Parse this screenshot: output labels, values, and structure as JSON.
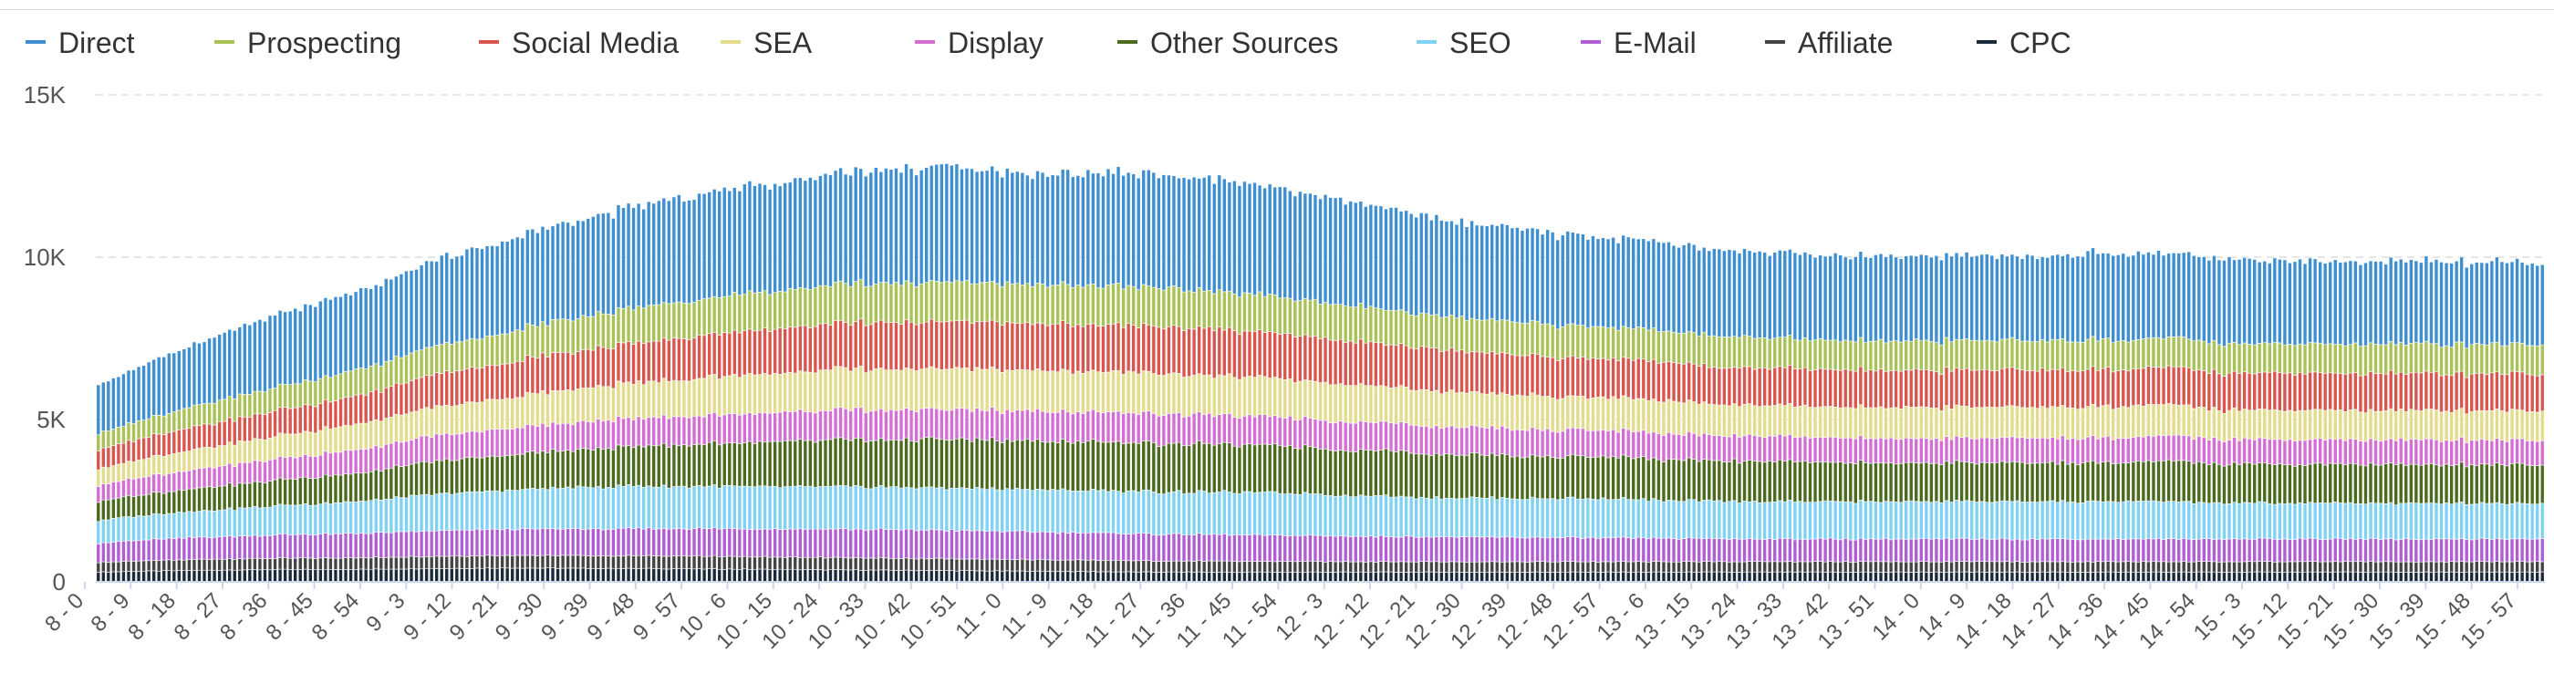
{
  "chart_data": {
    "type": "bar",
    "stacked": true,
    "title": "",
    "xlabel": "",
    "ylabel": "",
    "ylim": [
      0,
      15000
    ],
    "y_ticks": [
      0,
      5000,
      10000,
      15000
    ],
    "y_tick_labels": [
      "0",
      "5K",
      "10K",
      "15K"
    ],
    "grid": true,
    "legend_position": "top-left",
    "x_ticks": [
      "8 - 0",
      "8 - 9",
      "8 - 18",
      "8 - 27",
      "8 - 36",
      "8 - 45",
      "8 - 54",
      "9 - 3",
      "9 - 12",
      "9 - 21",
      "9 - 30",
      "9 - 39",
      "9 - 48",
      "9 - 57",
      "10 - 6",
      "10 - 15",
      "10 - 24",
      "10 - 33",
      "10 - 42",
      "10 - 51",
      "11 - 0",
      "11 - 9",
      "11 - 18",
      "11 - 27",
      "11 - 36",
      "11 - 45",
      "11 - 54",
      "12 - 3",
      "12 - 12",
      "12 - 21",
      "12 - 30",
      "12 - 39",
      "12 - 48",
      "12 - 57",
      "13 - 6",
      "13 - 15",
      "13 - 24",
      "13 - 33",
      "13 - 42",
      "13 - 51",
      "14 - 0",
      "14 - 9",
      "14 - 18",
      "14 - 27",
      "14 - 36",
      "14 - 45",
      "14 - 54",
      "15 - 3",
      "15 - 12",
      "15 - 21",
      "15 - 30",
      "15 - 39",
      "15 - 48",
      "15 - 57"
    ],
    "categories_note_free": true,
    "series": [
      {
        "name": "CPC",
        "color": "#1b2a3a",
        "values": [
          300,
          330,
          350,
          370,
          380,
          380,
          390,
          410,
          420,
          430,
          420,
          410,
          410,
          400,
          390,
          380,
          370,
          360,
          350,
          340,
          330,
          320,
          310,
          300,
          300,
          300,
          300,
          300,
          300,
          300,
          300,
          300,
          300,
          300,
          300,
          300,
          300,
          300,
          300,
          300,
          300,
          300,
          300,
          300,
          300,
          300,
          300,
          300,
          300,
          300,
          300,
          300,
          300,
          300
        ]
      },
      {
        "name": "Affiliate",
        "color": "#444444",
        "values": [
          300,
          320,
          330,
          340,
          350,
          350,
          360,
          370,
          380,
          390,
          390,
          390,
          390,
          390,
          390,
          380,
          380,
          370,
          370,
          360,
          360,
          350,
          350,
          340,
          340,
          330,
          330,
          320,
          320,
          320,
          320,
          320,
          320,
          320,
          320,
          320,
          320,
          320,
          320,
          320,
          320,
          320,
          320,
          320,
          320,
          320,
          320,
          320,
          320,
          320,
          320,
          320,
          320,
          320
        ]
      },
      {
        "name": "E-Mail",
        "color": "#b05ed4",
        "values": [
          600,
          640,
          680,
          700,
          720,
          740,
          760,
          780,
          800,
          810,
          820,
          830,
          840,
          850,
          860,
          870,
          880,
          880,
          880,
          870,
          860,
          850,
          840,
          830,
          820,
          810,
          800,
          790,
          780,
          770,
          760,
          750,
          740,
          730,
          720,
          710,
          700,
          700,
          700,
          700,
          700,
          700,
          700,
          700,
          700,
          700,
          700,
          700,
          700,
          700,
          700,
          700,
          700,
          700
        ]
      },
      {
        "name": "SEO",
        "color": "#7fd2f2",
        "values": [
          700,
          750,
          800,
          850,
          900,
          950,
          1000,
          1100,
          1150,
          1200,
          1250,
          1300,
          1300,
          1300,
          1300,
          1300,
          1300,
          1300,
          1300,
          1300,
          1300,
          1300,
          1300,
          1300,
          1300,
          1300,
          1300,
          1250,
          1250,
          1200,
          1200,
          1200,
          1200,
          1200,
          1150,
          1150,
          1150,
          1150,
          1150,
          1150,
          1150,
          1150,
          1150,
          1150,
          1150,
          1150,
          1100,
          1100,
          1100,
          1100,
          1100,
          1100,
          1100,
          1100
        ]
      },
      {
        "name": "Other Sources",
        "color": "#4a6a1e",
        "values": [
          600,
          650,
          700,
          750,
          800,
          850,
          900,
          1000,
          1050,
          1100,
          1150,
          1200,
          1250,
          1300,
          1350,
          1400,
          1450,
          1450,
          1500,
          1500,
          1500,
          1500,
          1500,
          1500,
          1500,
          1450,
          1450,
          1400,
          1400,
          1350,
          1350,
          1300,
          1300,
          1300,
          1250,
          1250,
          1250,
          1250,
          1200,
          1200,
          1200,
          1200,
          1200,
          1200,
          1200,
          1250,
          1200,
          1200,
          1200,
          1200,
          1200,
          1200,
          1200,
          1200
        ]
      },
      {
        "name": "Display",
        "color": "#d46ed4",
        "values": [
          500,
          540,
          580,
          620,
          660,
          700,
          740,
          780,
          800,
          820,
          840,
          860,
          870,
          880,
          890,
          900,
          910,
          920,
          920,
          920,
          920,
          920,
          920,
          910,
          900,
          890,
          880,
          870,
          860,
          850,
          840,
          830,
          820,
          810,
          800,
          790,
          780,
          770,
          760,
          760,
          760,
          760,
          760,
          760,
          760,
          770,
          760,
          760,
          760,
          760,
          760,
          760,
          760,
          760
        ]
      },
      {
        "name": "SEA",
        "color": "#e2dc8c",
        "values": [
          500,
          550,
          600,
          650,
          700,
          750,
          800,
          850,
          900,
          950,
          1000,
          1050,
          1100,
          1150,
          1200,
          1200,
          1250,
          1250,
          1250,
          1250,
          1250,
          1250,
          1250,
          1250,
          1200,
          1200,
          1150,
          1150,
          1100,
          1100,
          1050,
          1050,
          1000,
          1000,
          1000,
          950,
          950,
          950,
          950,
          950,
          950,
          950,
          950,
          950,
          950,
          950,
          900,
          900,
          900,
          900,
          900,
          900,
          900,
          900
        ]
      },
      {
        "name": "Social Media",
        "color": "#d9564f",
        "values": [
          600,
          650,
          700,
          750,
          800,
          850,
          900,
          1000,
          1050,
          1100,
          1150,
          1200,
          1250,
          1300,
          1350,
          1400,
          1400,
          1450,
          1450,
          1450,
          1450,
          1450,
          1450,
          1450,
          1450,
          1400,
          1400,
          1350,
          1300,
          1300,
          1250,
          1250,
          1200,
          1200,
          1200,
          1150,
          1150,
          1150,
          1150,
          1150,
          1150,
          1150,
          1150,
          1150,
          1150,
          1150,
          1150,
          1150,
          1150,
          1150,
          1150,
          1150,
          1150,
          1150
        ]
      },
      {
        "name": "Prospecting",
        "color": "#a8c256",
        "values": [
          500,
          560,
          620,
          680,
          720,
          760,
          800,
          850,
          900,
          950,
          1000,
          1050,
          1100,
          1100,
          1150,
          1150,
          1200,
          1200,
          1200,
          1200,
          1200,
          1200,
          1200,
          1200,
          1150,
          1150,
          1100,
          1100,
          1050,
          1050,
          1000,
          1000,
          1000,
          950,
          950,
          950,
          950,
          900,
          900,
          900,
          900,
          900,
          900,
          900,
          900,
          900,
          900,
          900,
          900,
          900,
          900,
          900,
          900,
          900
        ]
      },
      {
        "name": "Direct",
        "color": "#3d8fd1",
        "values": [
          1500,
          1700,
          1900,
          2100,
          2250,
          2350,
          2450,
          2600,
          2750,
          2850,
          2950,
          3050,
          3150,
          3250,
          3300,
          3350,
          3450,
          3500,
          3550,
          3550,
          3400,
          3450,
          3500,
          3500,
          3450,
          3400,
          3300,
          3200,
          3100,
          3000,
          2900,
          2850,
          2800,
          2750,
          2700,
          2650,
          2650,
          2600,
          2600,
          2600,
          2600,
          2600,
          2600,
          2650,
          2650,
          2650,
          2600,
          2550,
          2550,
          2550,
          2550,
          2550,
          2550,
          2550
        ]
      }
    ]
  },
  "legend": {
    "items": [
      {
        "label": "Direct",
        "color": "#3d8fd1"
      },
      {
        "label": "Prospecting",
        "color": "#a8c256"
      },
      {
        "label": "Social Media",
        "color": "#d9564f"
      },
      {
        "label": "SEA",
        "color": "#e2dc8c"
      },
      {
        "label": "Display",
        "color": "#d46ed4"
      },
      {
        "label": "Other Sources",
        "color": "#4a6a1e"
      },
      {
        "label": "SEO",
        "color": "#7fd2f2"
      },
      {
        "label": "E-Mail",
        "color": "#b05ed4"
      },
      {
        "label": "Affiliate",
        "color": "#444444"
      },
      {
        "label": "CPC",
        "color": "#1b2a3a"
      }
    ]
  }
}
